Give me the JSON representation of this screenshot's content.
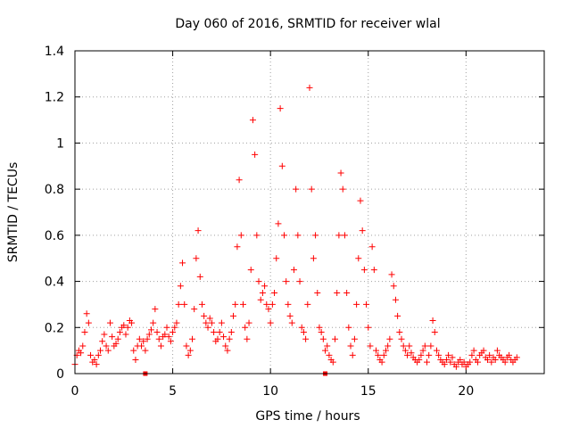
{
  "chart_data": {
    "type": "scatter",
    "title": "Day 060 of 2016, SRMTID for receiver wlal",
    "xlabel": "GPS time / hours",
    "ylabel": "SRMTID / TECUs",
    "xlim": [
      0,
      24
    ],
    "ylim": [
      0,
      1.4
    ],
    "x_ticks": [
      0,
      5,
      10,
      15,
      20
    ],
    "x_tick_labels": [
      "0",
      "5",
      "10",
      "15",
      "20"
    ],
    "y_ticks": [
      0,
      0.2,
      0.4,
      0.6,
      0.8,
      1.0,
      1.2,
      1.4
    ],
    "y_tick_labels": [
      "0",
      "0.2",
      "0.4",
      "0.6",
      "0.8",
      "1",
      "1.2",
      "1.4"
    ],
    "grid": true,
    "marker": "+",
    "color": "#ff0000",
    "series": [
      {
        "name": "SRMTID",
        "x": [
          0.0,
          0.1,
          0.2,
          0.3,
          0.4,
          0.5,
          0.6,
          0.7,
          0.8,
          0.9,
          1.0,
          1.1,
          1.2,
          1.3,
          1.4,
          1.5,
          1.6,
          1.7,
          1.8,
          1.9,
          2.0,
          2.1,
          2.2,
          2.3,
          2.4,
          2.5,
          2.6,
          2.7,
          2.8,
          2.9,
          3.0,
          3.1,
          3.2,
          3.3,
          3.4,
          3.5,
          3.6,
          3.7,
          3.8,
          3.9,
          4.0,
          4.1,
          4.2,
          4.3,
          4.4,
          4.5,
          4.6,
          4.7,
          4.8,
          4.9,
          5.0,
          5.1,
          5.2,
          5.3,
          5.4,
          5.5,
          5.6,
          5.7,
          5.8,
          5.9,
          6.0,
          6.1,
          6.2,
          6.3,
          6.4,
          6.5,
          6.6,
          6.7,
          6.8,
          6.9,
          7.0,
          7.1,
          7.2,
          7.3,
          7.4,
          7.5,
          7.6,
          7.7,
          7.8,
          7.9,
          8.0,
          8.1,
          8.2,
          8.3,
          8.4,
          8.5,
          8.6,
          8.7,
          8.8,
          8.9,
          9.0,
          9.1,
          9.2,
          9.3,
          9.4,
          9.5,
          9.6,
          9.7,
          9.8,
          9.9,
          10.0,
          10.1,
          10.2,
          10.3,
          10.4,
          10.5,
          10.6,
          10.7,
          10.8,
          10.9,
          11.0,
          11.1,
          11.2,
          11.3,
          11.4,
          11.5,
          11.6,
          11.7,
          11.8,
          11.9,
          12.0,
          12.1,
          12.2,
          12.3,
          12.4,
          12.5,
          12.6,
          12.7,
          12.8,
          12.9,
          13.0,
          13.1,
          13.2,
          13.3,
          13.4,
          13.5,
          13.6,
          13.7,
          13.8,
          13.9,
          14.0,
          14.1,
          14.2,
          14.3,
          14.4,
          14.5,
          14.6,
          14.7,
          14.8,
          14.9,
          15.0,
          15.1,
          15.2,
          15.3,
          15.4,
          15.5,
          15.6,
          15.7,
          15.8,
          15.9,
          16.0,
          16.1,
          16.2,
          16.3,
          16.4,
          16.5,
          16.6,
          16.7,
          16.8,
          16.9,
          17.0,
          17.1,
          17.2,
          17.3,
          17.4,
          17.5,
          17.6,
          17.7,
          17.8,
          17.9,
          18.0,
          18.1,
          18.2,
          18.3,
          18.4,
          18.5,
          18.6,
          18.7,
          18.8,
          18.9,
          19.0,
          19.1,
          19.2,
          19.3,
          19.4,
          19.5,
          19.6,
          19.7,
          19.8,
          19.9,
          20.0,
          20.1,
          20.2,
          20.3,
          20.4,
          20.5,
          20.6,
          20.7,
          20.8,
          20.9,
          21.0,
          21.1,
          21.2,
          21.3,
          21.4,
          21.5,
          21.6,
          21.7,
          21.8,
          21.9,
          22.0,
          22.1,
          22.2,
          22.3,
          22.4,
          22.5,
          22.6
        ],
        "y": [
          0.04,
          0.08,
          0.1,
          0.09,
          0.12,
          0.18,
          0.26,
          0.22,
          0.08,
          0.05,
          0.06,
          0.04,
          0.08,
          0.1,
          0.14,
          0.17,
          0.12,
          0.1,
          0.22,
          0.16,
          0.12,
          0.13,
          0.15,
          0.18,
          0.2,
          0.21,
          0.17,
          0.2,
          0.23,
          0.22,
          0.1,
          0.06,
          0.12,
          0.15,
          0.12,
          0.14,
          0.1,
          0.15,
          0.17,
          0.19,
          0.22,
          0.28,
          0.18,
          0.15,
          0.12,
          0.16,
          0.17,
          0.2,
          0.16,
          0.14,
          0.18,
          0.2,
          0.22,
          0.3,
          0.38,
          0.48,
          0.3,
          0.12,
          0.08,
          0.1,
          0.15,
          0.28,
          0.5,
          0.62,
          0.42,
          0.3,
          0.25,
          0.22,
          0.2,
          0.24,
          0.22,
          0.18,
          0.14,
          0.15,
          0.18,
          0.22,
          0.16,
          0.12,
          0.1,
          0.15,
          0.18,
          0.25,
          0.3,
          0.55,
          0.84,
          0.6,
          0.3,
          0.2,
          0.15,
          0.22,
          0.45,
          1.1,
          0.95,
          0.6,
          0.4,
          0.32,
          0.35,
          0.38,
          0.3,
          0.28,
          0.22,
          0.3,
          0.35,
          0.5,
          0.65,
          1.15,
          0.9,
          0.6,
          0.4,
          0.3,
          0.25,
          0.22,
          0.45,
          0.8,
          0.6,
          0.4,
          0.2,
          0.18,
          0.15,
          0.3,
          1.24,
          0.8,
          0.5,
          0.6,
          0.35,
          0.2,
          0.18,
          0.15,
          0.1,
          0.12,
          0.08,
          0.06,
          0.05,
          0.15,
          0.35,
          0.6,
          0.87,
          0.8,
          0.6,
          0.35,
          0.2,
          0.12,
          0.08,
          0.15,
          0.3,
          0.5,
          0.75,
          0.62,
          0.45,
          0.3,
          0.2,
          0.12,
          0.55,
          0.45,
          0.1,
          0.08,
          0.06,
          0.05,
          0.08,
          0.1,
          0.12,
          0.15,
          0.43,
          0.38,
          0.32,
          0.25,
          0.18,
          0.15,
          0.12,
          0.1,
          0.08,
          0.12,
          0.09,
          0.07,
          0.06,
          0.05,
          0.06,
          0.08,
          0.1,
          0.12,
          0.05,
          0.08,
          0.12,
          0.23,
          0.18,
          0.1,
          0.08,
          0.06,
          0.05,
          0.04,
          0.06,
          0.08,
          0.05,
          0.07,
          0.04,
          0.03,
          0.05,
          0.06,
          0.04,
          0.05,
          0.03,
          0.04,
          0.05,
          0.08,
          0.1,
          0.06,
          0.05,
          0.08,
          0.09,
          0.1,
          0.07,
          0.06,
          0.08,
          0.05,
          0.07,
          0.06,
          0.1,
          0.08,
          0.07,
          0.06,
          0.05,
          0.07,
          0.08,
          0.06,
          0.05,
          0.06,
          0.07
        ]
      }
    ],
    "markers_at_zero": [
      3.6,
      12.8
    ]
  }
}
